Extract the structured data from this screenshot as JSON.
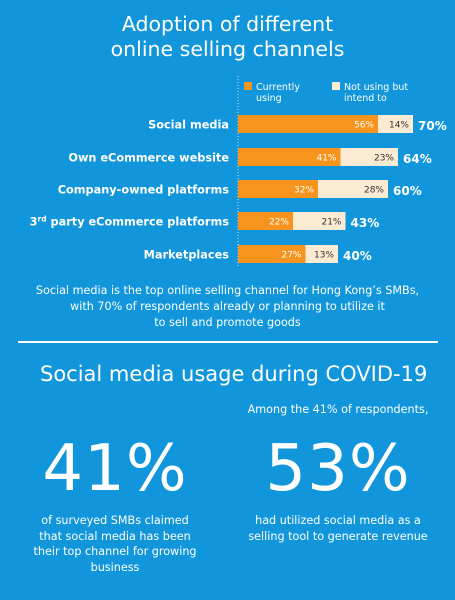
{
  "title": {
    "line1": "Adoption of different",
    "line2": "online selling channels"
  },
  "chart_data": {
    "type": "bar",
    "stacked": true,
    "orientation": "horizontal",
    "categories": [
      "Social media",
      "Own eCommerce website",
      "Company-owned platforms",
      "3rd party eCommerce platforms",
      "Marketplaces"
    ],
    "series": [
      {
        "name": "Currently using",
        "color": "#f7941d",
        "values": [
          56,
          41,
          32,
          22,
          27
        ],
        "labels": [
          "56%",
          "41%",
          "32%",
          "22%",
          "27%"
        ]
      },
      {
        "name": "Not using but intend to",
        "color": "#fbebd3",
        "values": [
          14,
          23,
          28,
          21,
          13
        ],
        "labels": [
          "14%",
          "23%",
          "28%",
          "21%",
          "13%"
        ]
      }
    ],
    "totals": [
      70,
      64,
      60,
      43,
      40
    ],
    "total_labels": [
      "70%",
      "64%",
      "60%",
      "43%",
      "40%"
    ],
    "legend_position": "top",
    "legend": [
      {
        "line1": "Currently",
        "line2": "using"
      },
      {
        "line1": "Not using but",
        "line2": "intend to"
      }
    ],
    "category_third": {
      "number": "3",
      "suffix": "rd",
      "rest": " party eCommerce platforms"
    },
    "xlim": [
      0,
      100
    ]
  },
  "caption": {
    "line1": "Social media is the top online selling channel for Hong Kong’s SMBs,",
    "line2": "with 70% of respondents already or planning to utilize it",
    "line3": "to sell and promote goods"
  },
  "section": {
    "title": "Social media usage during COVID-19"
  },
  "stats": {
    "intro": "Among the 41% of respondents,",
    "left_value": "41%",
    "left_desc": [
      "of surveyed SMBs claimed",
      "that social media has been",
      "their top channel for growing",
      "business"
    ],
    "right_value": "53%",
    "right_desc": [
      "had utilized social media as a",
      "selling tool to generate revenue"
    ]
  },
  "colors": {
    "background": "#1196dc",
    "currently_using": "#f7941d",
    "intend_to": "#fbebd3"
  }
}
